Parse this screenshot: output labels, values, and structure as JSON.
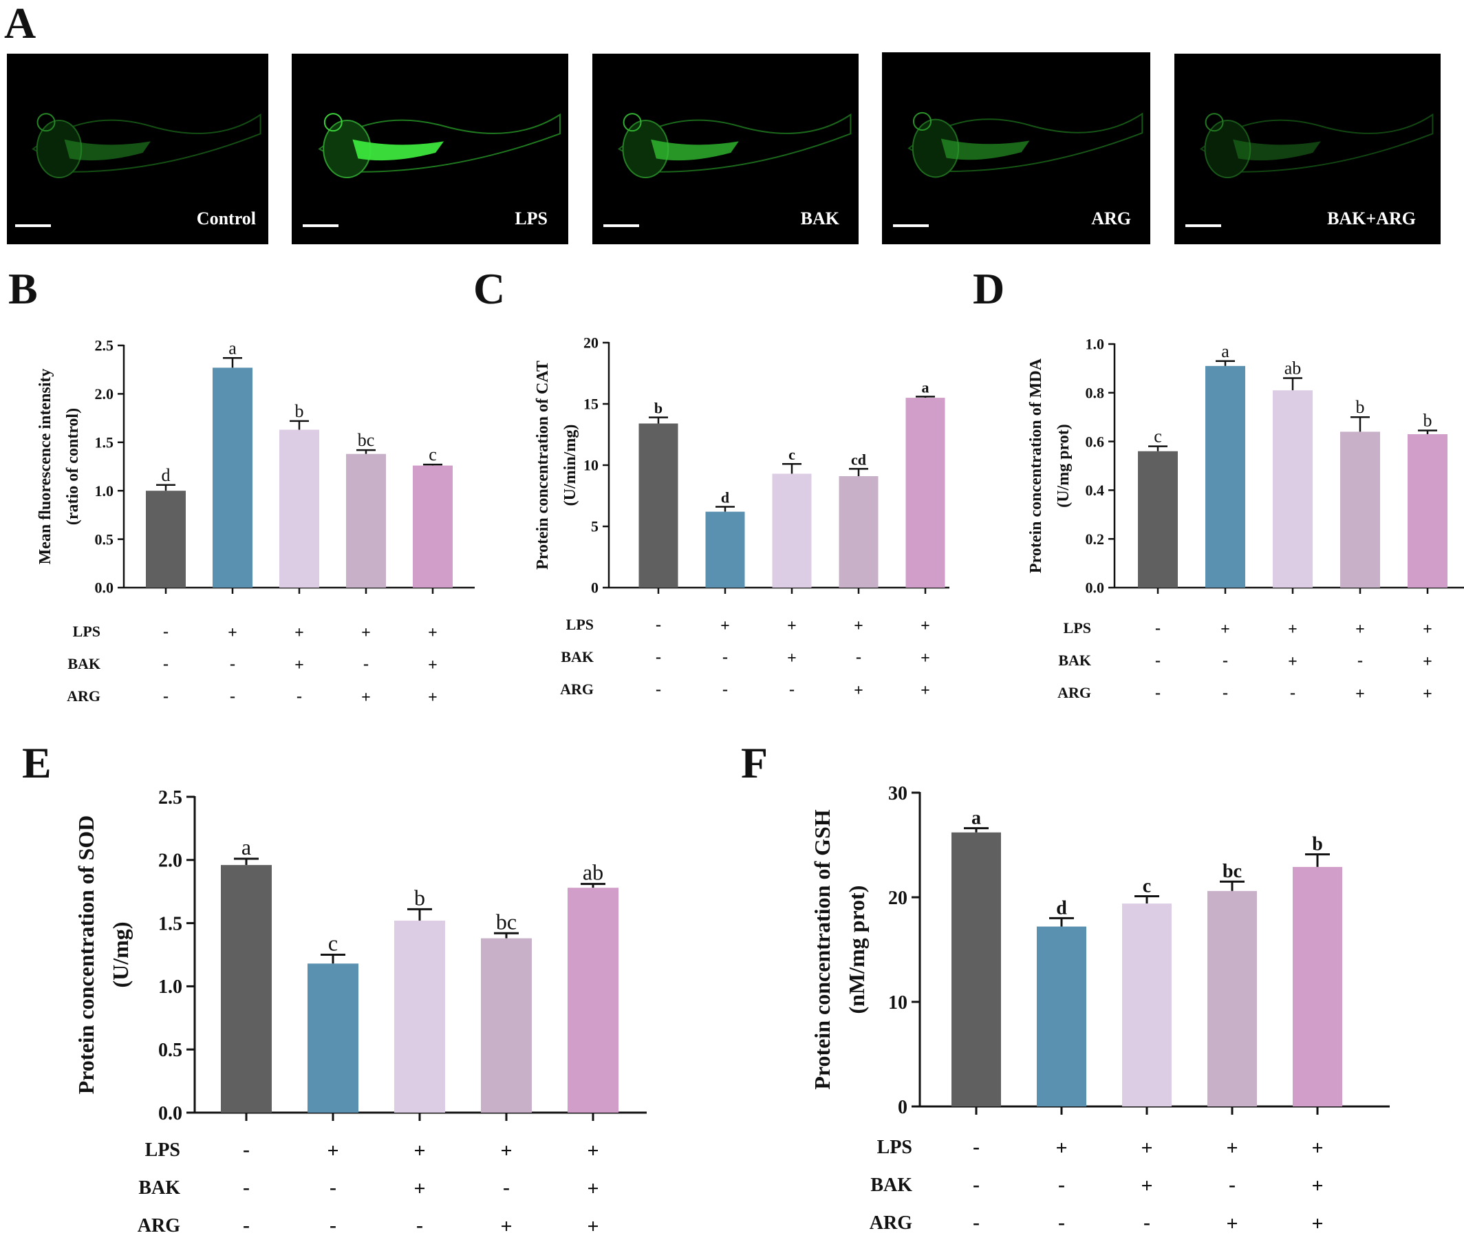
{
  "panel_letters": {
    "A": "A",
    "B": "B",
    "C": "C",
    "D": "D",
    "E": "E",
    "F": "F"
  },
  "micrographs": [
    {
      "label": "Control",
      "intensity": 0.45
    },
    {
      "label": "LPS",
      "intensity": 1.0
    },
    {
      "label": "BAK",
      "intensity": 0.75
    },
    {
      "label": "ARG",
      "intensity": 0.55
    },
    {
      "label": "BAK+ARG",
      "intensity": 0.35
    }
  ],
  "colors": [
    "#606060",
    "#5a90b0",
    "#dccde5",
    "#c8b0c8",
    "#d09ec8"
  ],
  "treatment_rows": [
    {
      "label": "LPS",
      "signs": [
        "-",
        "+",
        "+",
        "+",
        "+"
      ]
    },
    {
      "label": "BAK",
      "signs": [
        "-",
        "-",
        "+",
        "-",
        "+"
      ]
    },
    {
      "label": "ARG",
      "signs": [
        "-",
        "-",
        "-",
        "+",
        "+"
      ]
    }
  ],
  "chart_data": [
    {
      "panel": "B",
      "type": "bar",
      "ylabel": [
        "Mean fluorescence intensity",
        "(ratio of control)"
      ],
      "ylim": [
        0,
        2.5
      ],
      "ticks": [
        "0.0",
        "0.5",
        "1.0",
        "1.5",
        "2.0",
        "2.5"
      ],
      "values": [
        1.0,
        2.27,
        1.63,
        1.38,
        1.26
      ],
      "errors": [
        0.06,
        0.1,
        0.09,
        0.04,
        0.01
      ],
      "letters": [
        "d",
        "a",
        "b",
        "bc",
        "c"
      ]
    },
    {
      "panel": "C",
      "type": "bar",
      "ylabel": [
        "Protein concentration of CAT",
        "(U/min/mg)"
      ],
      "ylim": [
        0,
        20
      ],
      "ticks": [
        "0",
        "5",
        "10",
        "15",
        "20"
      ],
      "values": [
        13.4,
        6.2,
        9.3,
        9.1,
        15.5
      ],
      "errors": [
        0.5,
        0.4,
        0.8,
        0.6,
        0.1
      ],
      "letters": [
        "b",
        "d",
        "c",
        "cd",
        "a"
      ]
    },
    {
      "panel": "D",
      "type": "bar",
      "ylabel": [
        "Protein concentration of MDA",
        "(U/mg prot)"
      ],
      "ylim": [
        0,
        1.0
      ],
      "ticks": [
        "0.0",
        "0.2",
        "0.4",
        "0.6",
        "0.8",
        "1.0"
      ],
      "values": [
        0.56,
        0.91,
        0.81,
        0.64,
        0.63
      ],
      "errors": [
        0.02,
        0.02,
        0.05,
        0.06,
        0.015
      ],
      "letters": [
        "c",
        "a",
        "ab",
        "b",
        "b"
      ]
    },
    {
      "panel": "E",
      "type": "bar",
      "ylabel": [
        "Protein concentration of SOD",
        "(U/mg)"
      ],
      "ylim": [
        0,
        2.5
      ],
      "ticks": [
        "0.0",
        "0.5",
        "1.0",
        "1.5",
        "2.0",
        "2.5"
      ],
      "values": [
        1.96,
        1.18,
        1.52,
        1.38,
        1.78
      ],
      "errors": [
        0.05,
        0.07,
        0.09,
        0.04,
        0.03
      ],
      "letters": [
        "a",
        "c",
        "b",
        "bc",
        "ab"
      ]
    },
    {
      "panel": "F",
      "type": "bar",
      "ylabel": [
        "Protein concentration of GSH",
        "(nM/mg prot)"
      ],
      "ylim": [
        0,
        30
      ],
      "ticks": [
        "0",
        "10",
        "20",
        "30"
      ],
      "values": [
        26.2,
        17.2,
        19.4,
        20.6,
        22.9
      ],
      "errors": [
        0.4,
        0.8,
        0.7,
        0.9,
        1.2
      ],
      "letters": [
        "a",
        "d",
        "c",
        "bc",
        "b"
      ]
    }
  ]
}
